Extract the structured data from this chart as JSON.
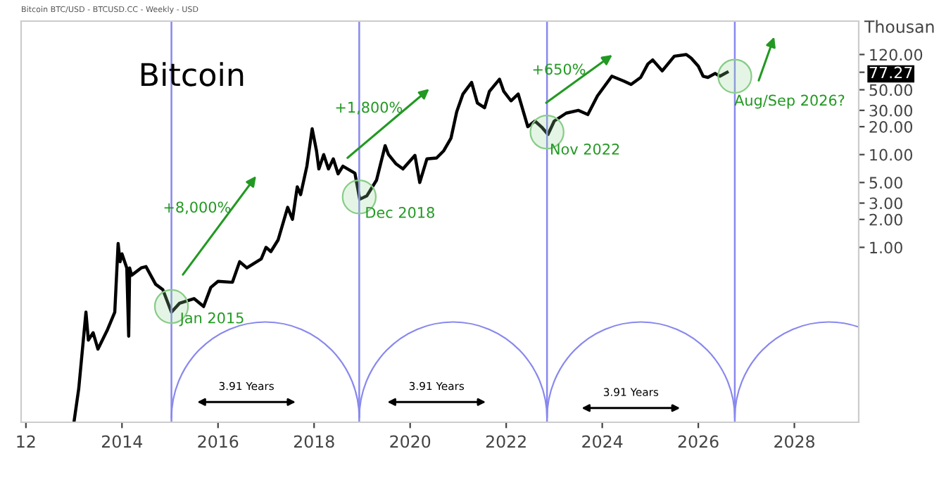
{
  "chart_data": {
    "type": "line",
    "title": "Bitcoin",
    "subtitle": "Bitcoin BTC/USD - BTCUSD.CC - Weekly - USD",
    "ylabel": "Thousan",
    "log": "y",
    "grid": false,
    "marker": "none",
    "line_style": "solid",
    "xlim": [
      2011.9,
      2029.34
    ],
    "xticks": [
      {
        "value": 2012,
        "label": "12"
      },
      2014,
      2016,
      2018,
      2020,
      2022,
      2024,
      2026,
      2028
    ],
    "ylim": [
      0.013,
      275
    ],
    "yticks": [
      {
        "value": 1,
        "label": "1.00"
      },
      {
        "value": 2,
        "label": "2.00"
      },
      {
        "value": 3,
        "label": "3.00"
      },
      {
        "value": 5,
        "label": "5.00"
      },
      {
        "value": 10,
        "label": "10.00"
      },
      {
        "value": 20,
        "label": "20.00"
      },
      {
        "value": 30,
        "label": "30.00"
      },
      {
        "value": 50,
        "label": "50.00"
      },
      {
        "value": 77.27,
        "label": "77.27"
      },
      {
        "value": 120,
        "label": "120.00"
      }
    ],
    "series": [
      {
        "color": "#000000",
        "x": [
          2013.0,
          2013.1,
          2013.25,
          2013.3,
          2013.4,
          2013.5,
          2013.7,
          2013.85,
          2013.92,
          2013.96,
          2014.0,
          2014.1,
          2014.14,
          2014.16,
          2014.2,
          2014.4,
          2014.5,
          2014.7,
          2014.85,
          2015.03,
          2015.2,
          2015.5,
          2015.7,
          2015.85,
          2016.0,
          2016.3,
          2016.45,
          2016.6,
          2016.9,
          2017.0,
          2017.1,
          2017.25,
          2017.45,
          2017.55,
          2017.65,
          2017.72,
          2017.85,
          2017.96,
          2018.05,
          2018.1,
          2018.2,
          2018.3,
          2018.4,
          2018.5,
          2018.6,
          2018.85,
          2018.95,
          2019.1,
          2019.3,
          2019.48,
          2019.55,
          2019.7,
          2019.85,
          2020.1,
          2020.2,
          2020.35,
          2020.55,
          2020.7,
          2020.85,
          2020.97,
          2021.1,
          2021.28,
          2021.4,
          2021.55,
          2021.65,
          2021.86,
          2021.95,
          2022.1,
          2022.25,
          2022.45,
          2022.6,
          2022.75,
          2022.87,
          2023.0,
          2023.25,
          2023.5,
          2023.7,
          2023.9,
          2024.2,
          2024.45,
          2024.6,
          2024.8,
          2024.95,
          2025.05,
          2025.25,
          2025.5,
          2025.75,
          2025.85,
          2026.0,
          2026.1,
          2026.2,
          2026.35,
          2026.45,
          2026.6
        ],
        "values": [
          0.013,
          0.03,
          0.2,
          0.1,
          0.12,
          0.08,
          0.13,
          0.2,
          1.1,
          0.7,
          0.85,
          0.6,
          0.11,
          0.6,
          0.5,
          0.6,
          0.62,
          0.4,
          0.35,
          0.2,
          0.25,
          0.28,
          0.23,
          0.37,
          0.43,
          0.42,
          0.7,
          0.6,
          0.75,
          1.0,
          0.9,
          1.2,
          2.7,
          2.0,
          4.5,
          3.7,
          7.5,
          19,
          11,
          7,
          10,
          7,
          9,
          6.2,
          7.5,
          6.3,
          3.3,
          3.6,
          5.3,
          12.5,
          10,
          8,
          7,
          9.8,
          5.0,
          9,
          9.2,
          11,
          15,
          29,
          45,
          60,
          36,
          32,
          48,
          65,
          48,
          38,
          45,
          20,
          23,
          19.5,
          16.5,
          23,
          28,
          30,
          27,
          43,
          70,
          62,
          57,
          68,
          95,
          105,
          80,
          115,
          120,
          110,
          90,
          70,
          68,
          75,
          70,
          77.27
        ]
      }
    ],
    "ref_lines": [
      {
        "axis": "x",
        "value": 2015.03,
        "color": "#8888ee"
      },
      {
        "axis": "x",
        "value": 2018.94,
        "color": "#8888ee"
      },
      {
        "axis": "x",
        "value": 2022.85,
        "color": "#8888ee"
      },
      {
        "axis": "x",
        "value": 2026.76,
        "color": "#8888ee"
      }
    ],
    "annotations": [
      "+8,000%",
      "+1,800%",
      "+650%",
      {
        "text": "Jan 2015",
        "x": 2015.03,
        "y": 0.23
      },
      {
        "text": "Dec 2018",
        "x": 2018.94,
        "y": 3.5
      },
      {
        "text": "Nov 2022",
        "x": 2022.85,
        "y": 17.5
      },
      {
        "text": "Aug/Sep 2026?",
        "x": 2026.76,
        "y": 70
      },
      "3.91 Years",
      "3.91 Years",
      "3.91 Years"
    ]
  }
}
